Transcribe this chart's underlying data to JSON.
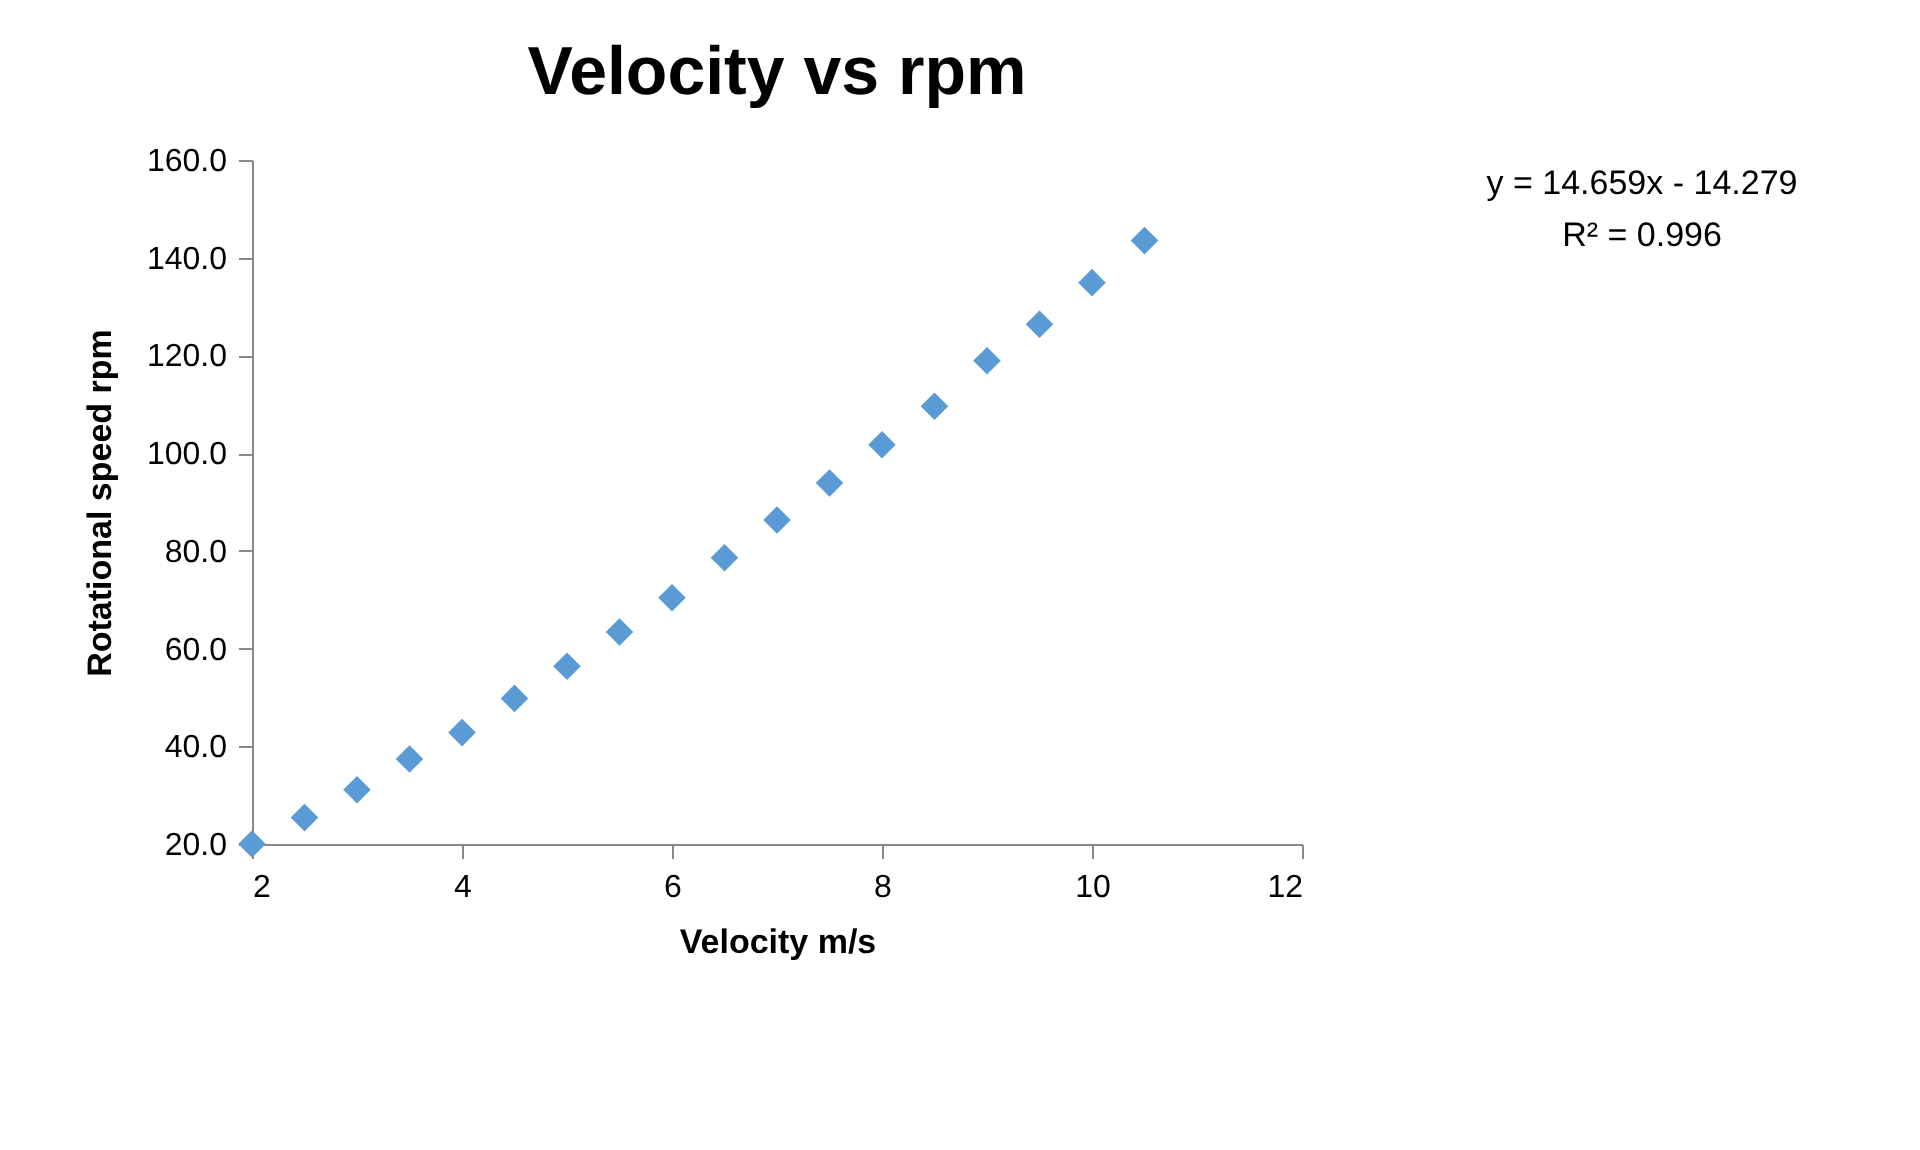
{
  "chart_data": {
    "type": "scatter",
    "title": "Velocity vs rpm",
    "xlabel": "Velocity  m/s",
    "ylabel": "Rotational speed   rpm",
    "x": [
      2,
      2.5,
      3,
      3.5,
      4,
      4.5,
      5,
      5.5,
      6,
      6.5,
      7,
      7.5,
      8,
      8.5,
      9,
      9.5,
      10,
      10.5
    ],
    "series": [
      {
        "color": "#5b9bd5",
        "values": [
          20.0,
          25.4,
          31.1,
          37.4,
          42.8,
          49.8,
          56.4,
          63.4,
          70.4,
          78.6,
          86.3,
          93.9,
          101.7,
          109.6,
          118.9,
          126.4,
          134.9,
          143.5
        ]
      }
    ],
    "marker": "diamond",
    "grid": false,
    "legend": false,
    "xlim": [
      2,
      12
    ],
    "xticks": [
      2,
      4,
      6,
      8,
      10,
      12
    ],
    "ylim": [
      20,
      160
    ],
    "yticks": [
      {
        "value": 20,
        "label": "20.0"
      },
      {
        "value": 40,
        "label": "40.0"
      },
      {
        "value": 60,
        "label": "60.0"
      },
      {
        "value": 80,
        "label": "80.0"
      },
      {
        "value": 100,
        "label": "100.0"
      },
      {
        "value": 120,
        "label": "120.0"
      },
      {
        "value": 140,
        "label": "140.0"
      },
      {
        "value": 160,
        "label": "160.0"
      }
    ],
    "annotations": [
      "y = 14.659x - 14.279",
      "R² = 0.996"
    ]
  }
}
